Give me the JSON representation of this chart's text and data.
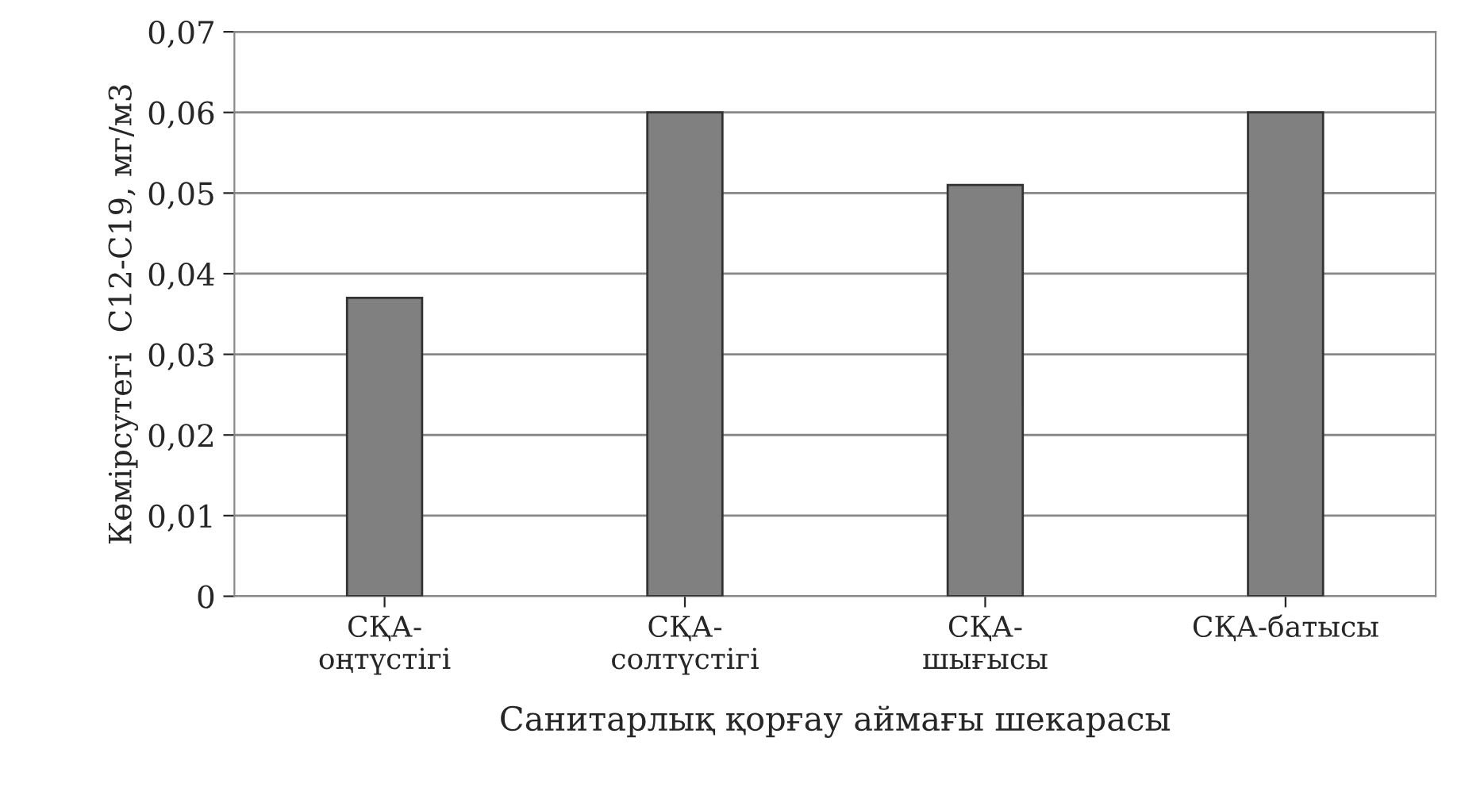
{
  "chart_data": {
    "type": "bar",
    "xlabel": "Санитарлық қорғау аймағы шекарасы",
    "ylabel": "Көмірсутегі  С12-С19, мг/м3",
    "categories": [
      "СҚА-\nоңтүстігі",
      "СҚА-\nсолтүстігі",
      "СҚА-\nшығысы",
      "СҚА-батысы"
    ],
    "values": [
      0.037,
      0.06,
      0.051,
      0.06
    ],
    "color": "#808080",
    "ylim": [
      0,
      0.07
    ],
    "yticks": [
      {
        "value": 0,
        "label": "0"
      },
      {
        "value": 0.01,
        "label": "0,01"
      },
      {
        "value": 0.02,
        "label": "0,02"
      },
      {
        "value": 0.03,
        "label": "0,03"
      },
      {
        "value": 0.04,
        "label": "0,04"
      },
      {
        "value": 0.05,
        "label": "0,05"
      },
      {
        "value": 0.06,
        "label": "0,06"
      },
      {
        "value": 0.07,
        "label": "0,07"
      }
    ],
    "grid": "y"
  }
}
